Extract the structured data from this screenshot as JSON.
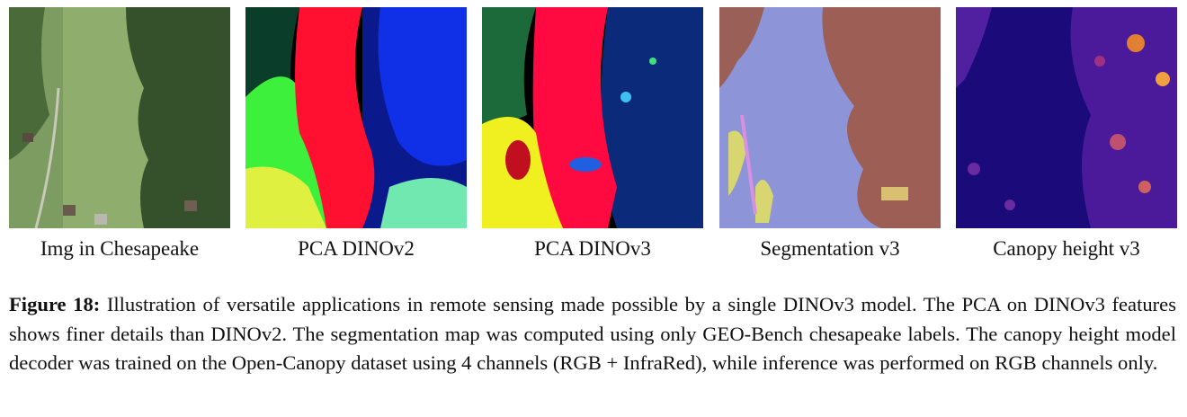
{
  "panels": [
    {
      "label": "Img in Chesapeake"
    },
    {
      "label": "PCA DINOv2"
    },
    {
      "label": "PCA DINOv3"
    },
    {
      "label": "Segmentation v3"
    },
    {
      "label": "Canopy height v3"
    }
  ],
  "caption": {
    "label": "Figure 18:",
    "text": "Illustration of versatile applications in remote sensing made possible by a single DINOv3 model. The PCA on DINOv3 features shows finer details than DINOv2. The segmentation map was computed using only GEO-Bench chesapeake labels. The canopy height model decoder was trained on the Open-Canopy dataset using 4 channels (RGB + InfraRed), while inference was performed on RGB channels only."
  }
}
